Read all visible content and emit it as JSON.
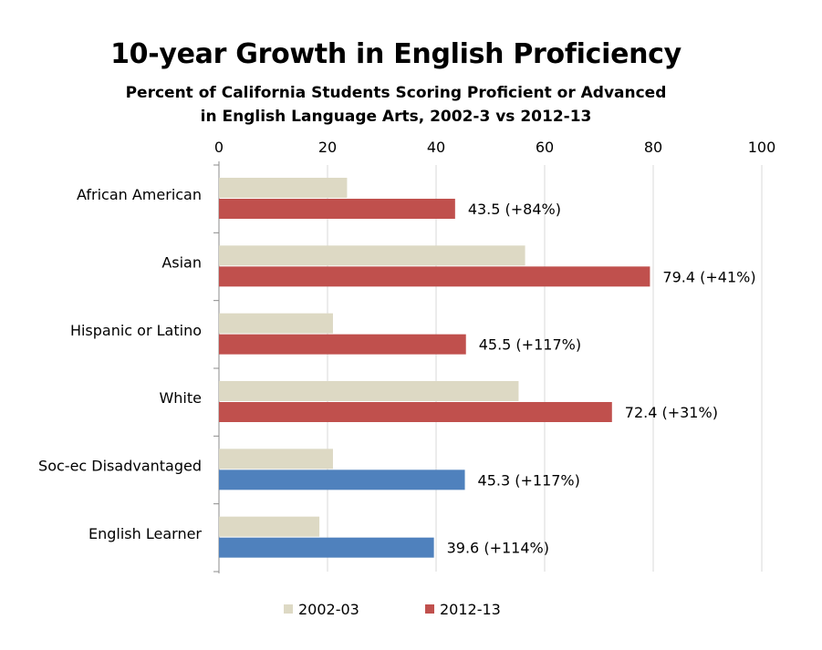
{
  "chart_data": {
    "type": "bar",
    "orientation": "horizontal",
    "title": "10-year Growth in English Proficiency",
    "subtitle_line1": "Percent of California Students Scoring Proficient or Advanced",
    "subtitle_line2": "in English Language Arts, 2002-3 vs 2012-13",
    "categories": [
      "African American",
      "Asian",
      "Hispanic or Latino",
      "White",
      "Soc-ec Disadvantaged",
      "English Learner"
    ],
    "series": [
      {
        "name": "2002-03",
        "color": "#ddd9c4",
        "values": [
          23.6,
          56.4,
          21.0,
          55.2,
          21.0,
          18.5
        ]
      },
      {
        "name": "2012-13",
        "color": "#c0504d",
        "values": [
          43.5,
          79.4,
          45.5,
          72.4,
          45.3,
          39.6
        ]
      }
    ],
    "highlight_color": "#4f81bd",
    "highlight_categories": [
      "Soc-ec Disadvantaged",
      "English Learner"
    ],
    "data_labels": [
      "43.5 (+84%)",
      "79.4 (+41%)",
      "45.5 (+117%)",
      "72.4 (+31%)",
      "45.3 (+117%)",
      "39.6 (+114%)"
    ],
    "xlim": [
      0,
      100
    ],
    "xticks": [
      0,
      20,
      40,
      60,
      80,
      100
    ],
    "x_axis_position": "top",
    "grid": true,
    "legend_position": "bottom"
  }
}
